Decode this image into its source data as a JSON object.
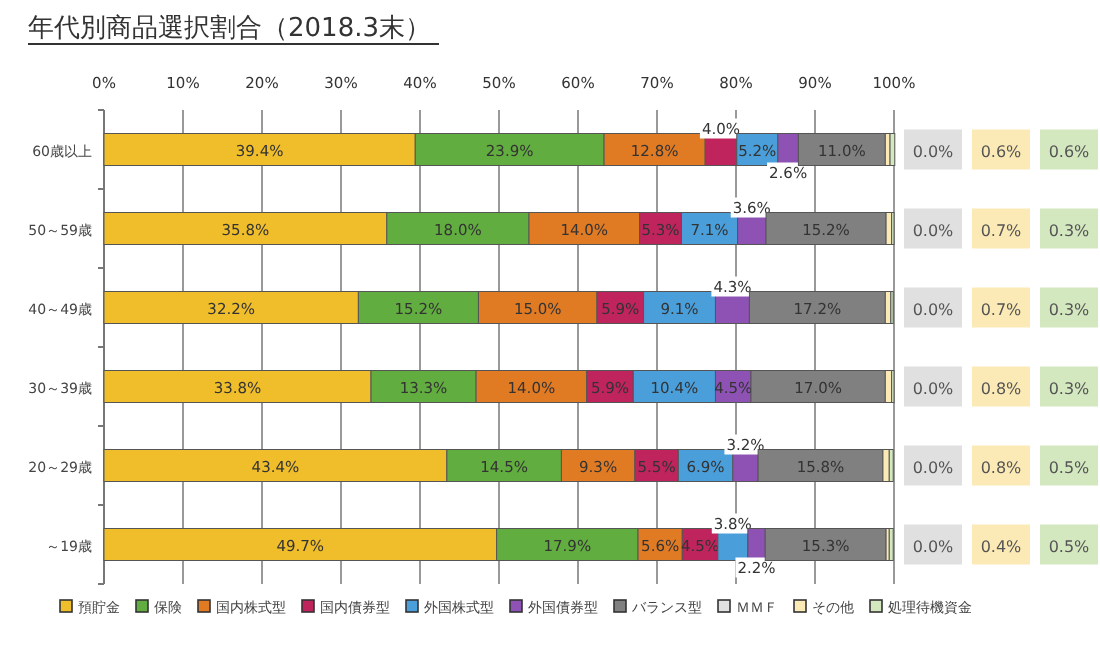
{
  "chart_data": {
    "type": "bar",
    "orientation": "horizontal",
    "stacked": true,
    "title": "年代別商品選択割合（2018.3末）",
    "categories": [
      "60歳以上",
      "50～59歳",
      "40～49歳",
      "30～39歳",
      "20～29歳",
      "～19歳"
    ],
    "xlim": [
      0,
      100
    ],
    "xticks": [
      {
        "value": 0,
        "label": "0%"
      },
      {
        "value": 10,
        "label": "10%"
      },
      {
        "value": 20,
        "label": "20%"
      },
      {
        "value": 30,
        "label": "30%"
      },
      {
        "value": 40,
        "label": "40%"
      },
      {
        "value": 50,
        "label": "50%"
      },
      {
        "value": 60,
        "label": "60%"
      },
      {
        "value": 70,
        "label": "70%"
      },
      {
        "value": 80,
        "label": "80%"
      },
      {
        "value": 90,
        "label": "90%"
      },
      {
        "value": 100,
        "label": "100%"
      }
    ],
    "grid": "x",
    "legend": "bottom",
    "series": [
      {
        "name": "預貯金",
        "color": "#f0be2a",
        "values": [
          39.4,
          35.8,
          32.2,
          33.8,
          43.4,
          49.7
        ],
        "value_labels": [
          "39.4%",
          "35.8%",
          "32.2%",
          "33.8%",
          "43.4%",
          "49.7%"
        ]
      },
      {
        "name": "保険",
        "color": "#62ad3f",
        "values": [
          23.9,
          18.0,
          15.2,
          13.3,
          14.5,
          17.9
        ],
        "value_labels": [
          "23.9%",
          "18.0%",
          "15.2%",
          "13.3%",
          "14.5%",
          "17.9%"
        ]
      },
      {
        "name": "国内株式型",
        "color": "#e07b24",
        "values": [
          12.8,
          14.0,
          15.0,
          14.0,
          9.3,
          5.6
        ],
        "value_labels": [
          "12.8%",
          "14.0%",
          "15.0%",
          "14.0%",
          "9.3%",
          "5.6%"
        ]
      },
      {
        "name": "国内債券型",
        "color": "#c0245c",
        "values": [
          4.0,
          5.3,
          5.9,
          5.9,
          5.5,
          4.5
        ],
        "value_labels": [
          "4.0%",
          "5.3%",
          "5.9%",
          "5.9%",
          "5.5%",
          "4.5%"
        ]
      },
      {
        "name": "外国株式型",
        "color": "#4a9fdb",
        "values": [
          5.2,
          7.1,
          9.1,
          10.4,
          6.9,
          3.8
        ],
        "value_labels": [
          "5.2%",
          "7.1%",
          "9.1%",
          "10.4%",
          "6.9%",
          "3.8%"
        ]
      },
      {
        "name": "外国債券型",
        "color": "#8e52b5",
        "values": [
          2.6,
          3.6,
          4.3,
          4.5,
          3.2,
          2.2
        ],
        "value_labels": [
          "2.6%",
          "3.6%",
          "4.3%",
          "4.5%",
          "3.2%",
          "2.2%"
        ]
      },
      {
        "name": "バランス型",
        "color": "#808080",
        "values": [
          11.0,
          15.2,
          17.2,
          17.0,
          15.8,
          15.3
        ],
        "value_labels": [
          "11.0%",
          "15.2%",
          "17.2%",
          "17.0%",
          "15.8%",
          "15.3%"
        ]
      },
      {
        "name": "ＭＭＦ",
        "color": "#e0e0e0",
        "values": [
          0.0,
          0.0,
          0.0,
          0.0,
          0.0,
          0.0
        ],
        "value_labels": [
          "0.0%",
          "0.0%",
          "0.0%",
          "0.0%",
          "0.0%",
          "0.0%"
        ]
      },
      {
        "name": "その他",
        "color": "#fbeab5",
        "values": [
          0.6,
          0.7,
          0.7,
          0.8,
          0.8,
          0.4
        ],
        "value_labels": [
          "0.6%",
          "0.7%",
          "0.7%",
          "0.8%",
          "0.8%",
          "0.4%"
        ]
      },
      {
        "name": "処理待機資金",
        "color": "#d4e8c0",
        "values": [
          0.6,
          0.3,
          0.3,
          0.3,
          0.5,
          0.5
        ],
        "value_labels": [
          "0.6%",
          "0.3%",
          "0.3%",
          "0.3%",
          "0.5%",
          "0.5%"
        ]
      }
    ]
  }
}
